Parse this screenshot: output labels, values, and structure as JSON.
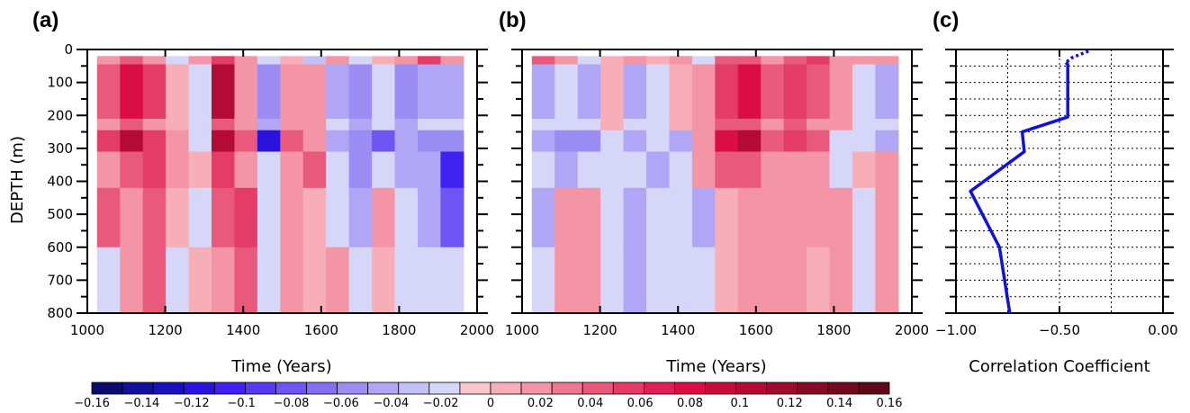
{
  "chart_data": [
    {
      "panel": "(a)",
      "type": "heatmap",
      "xlabel": "Time (Years)",
      "ylabel": "DEPTH (m)",
      "xlim": [
        1000,
        2000
      ],
      "ylim": [
        800,
        0
      ],
      "x_ticks": [
        "1000",
        "1200",
        "1400",
        "1600",
        "1800",
        "2000"
      ],
      "y_ticks": [
        "0",
        "100",
        "200",
        "300",
        "400",
        "500",
        "600",
        "700",
        "800"
      ],
      "data_x_range": [
        1025,
        1965
      ],
      "depth_bands": [
        [
          20,
          45
        ],
        [
          45,
          210
        ],
        [
          210,
          245
        ],
        [
          245,
          310
        ],
        [
          310,
          420
        ],
        [
          420,
          600
        ],
        [
          600,
          800
        ]
      ],
      "band_values": [
        [
          0.02,
          0.04,
          0.02,
          -0.02,
          0.02,
          0.06,
          0.02,
          -0.02,
          0.0,
          -0.03,
          0.02,
          -0.02,
          0.0,
          0.02,
          0.06,
          0.02
        ],
        [
          0.04,
          0.08,
          0.06,
          0.0,
          -0.02,
          0.1,
          0.02,
          -0.06,
          0.02,
          0.02,
          -0.04,
          -0.06,
          -0.02,
          -0.06,
          -0.04,
          -0.04
        ],
        [
          0.02,
          0.04,
          0.02,
          0.0,
          -0.02,
          0.04,
          0.02,
          -0.04,
          0.02,
          0.02,
          -0.02,
          -0.04,
          -0.02,
          -0.04,
          -0.02,
          -0.02
        ],
        [
          0.06,
          0.1,
          0.06,
          0.02,
          -0.02,
          0.1,
          0.04,
          -0.12,
          0.04,
          0.02,
          -0.04,
          -0.06,
          -0.08,
          -0.04,
          -0.06,
          -0.06
        ],
        [
          0.02,
          0.04,
          0.06,
          0.02,
          0.0,
          0.06,
          0.02,
          -0.02,
          0.02,
          0.04,
          -0.02,
          -0.06,
          -0.02,
          -0.04,
          -0.04,
          -0.1
        ],
        [
          0.04,
          0.02,
          0.04,
          0.0,
          -0.02,
          0.04,
          0.06,
          -0.02,
          0.02,
          0.0,
          -0.02,
          -0.04,
          0.02,
          -0.02,
          -0.04,
          -0.08
        ],
        [
          -0.02,
          0.02,
          0.04,
          -0.02,
          0.0,
          0.02,
          0.04,
          -0.02,
          0.02,
          0.0,
          0.02,
          -0.02,
          0.0,
          -0.02,
          -0.02,
          -0.02
        ]
      ]
    },
    {
      "panel": "(b)",
      "type": "heatmap",
      "xlabel": "Time (Years)",
      "ylabel": "",
      "xlim": [
        1000,
        2000
      ],
      "ylim": [
        800,
        0
      ],
      "x_ticks": [
        "1000",
        "1200",
        "1400",
        "1600",
        "1800",
        "2000"
      ],
      "data_x_range": [
        1025,
        1965
      ],
      "depth_bands": [
        [
          20,
          45
        ],
        [
          45,
          210
        ],
        [
          210,
          245
        ],
        [
          245,
          310
        ],
        [
          310,
          420
        ],
        [
          420,
          600
        ],
        [
          600,
          800
        ]
      ],
      "band_values": [
        [
          0.04,
          0.02,
          -0.02,
          0.0,
          0.02,
          0.0,
          0.02,
          -0.02,
          0.04,
          0.04,
          0.02,
          0.04,
          0.06,
          0.02,
          0.02,
          0.02
        ],
        [
          -0.04,
          -0.02,
          -0.04,
          0.0,
          -0.04,
          -0.02,
          0.0,
          0.02,
          0.06,
          0.08,
          0.04,
          0.06,
          0.04,
          0.02,
          -0.02,
          -0.04
        ],
        [
          -0.02,
          -0.02,
          -0.02,
          0.0,
          -0.02,
          -0.02,
          0.0,
          0.02,
          0.04,
          0.04,
          0.02,
          0.04,
          0.02,
          0.02,
          -0.02,
          -0.02
        ],
        [
          -0.04,
          -0.06,
          -0.06,
          -0.02,
          -0.04,
          -0.02,
          -0.04,
          0.02,
          0.08,
          0.1,
          0.04,
          0.06,
          0.04,
          -0.02,
          -0.02,
          -0.04
        ],
        [
          -0.02,
          -0.04,
          -0.02,
          -0.02,
          -0.02,
          -0.04,
          -0.02,
          0.02,
          0.04,
          0.04,
          0.02,
          0.02,
          0.02,
          -0.02,
          0.0,
          0.02
        ],
        [
          -0.04,
          0.02,
          0.02,
          -0.02,
          -0.04,
          -0.02,
          -0.02,
          -0.04,
          0.0,
          0.02,
          0.02,
          0.02,
          0.02,
          0.02,
          -0.02,
          0.02
        ],
        [
          -0.02,
          0.02,
          0.02,
          -0.02,
          -0.04,
          -0.02,
          -0.02,
          -0.02,
          0.0,
          0.02,
          0.02,
          0.02,
          0.0,
          0.02,
          -0.02,
          0.02
        ]
      ]
    },
    {
      "panel": "(c)",
      "type": "line",
      "xlabel": "Correlation Coefficient",
      "ylabel": "",
      "xlim": [
        -1.0,
        0.0
      ],
      "ylim": [
        800,
        0
      ],
      "x_ticks": [
        "−1.00",
        "−0.50",
        "0.00"
      ],
      "solid_line": {
        "x": [
          -0.47,
          -0.46,
          -0.46,
          -0.68,
          -0.67,
          -0.93,
          -0.79,
          -0.74
        ],
        "y": [
          40,
          45,
          205,
          250,
          310,
          430,
          600,
          800
        ]
      },
      "dotted_line": {
        "x": [
          -0.36,
          -0.44,
          -0.47
        ],
        "y": [
          5,
          25,
          40
        ]
      }
    }
  ],
  "colorbar": {
    "tick_labels": [
      "−0.16",
      "−0.14",
      "−0.12",
      "−0.1",
      "−0.08",
      "−0.06",
      "−0.04",
      "−0.02",
      "0",
      "0.02",
      "0.04",
      "0.06",
      "0.08",
      "0.1",
      "0.12",
      "0.14",
      "0.16"
    ],
    "colors": [
      "#0b0c6e",
      "#11119a",
      "#1a10c0",
      "#2a13dc",
      "#3f22f0",
      "#5939f3",
      "#6f55f4",
      "#8570f4",
      "#9b8cf4",
      "#b0a6f5",
      "#c3c0f6",
      "#d6d6f8",
      "#f9c7c8",
      "#f8aeb6",
      "#f395a4",
      "#ee7890",
      "#e8597b",
      "#e33c67",
      "#df1f55",
      "#db0d45",
      "#c80b3d",
      "#b30b35",
      "#9d0b2d",
      "#880b25",
      "#730a1e",
      "#5e0818"
    ]
  }
}
